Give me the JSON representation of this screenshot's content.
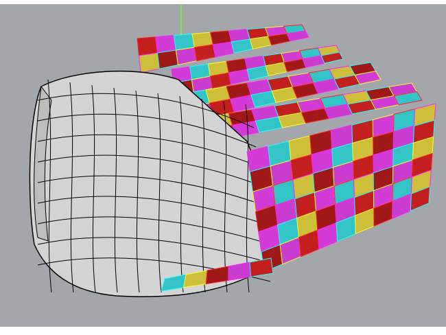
{
  "viewport": {
    "background": "#a3a6aa",
    "shell_color": "#d4d4d4",
    "edge_color": "#000000"
  },
  "panel_palette": [
    "#c41f1f",
    "#d23bd6",
    "#33c4c8",
    "#cdbf3a",
    "#a01818",
    "#c93ccf"
  ],
  "panel_edge_colors": [
    "#ff2020",
    "#ff20ff",
    "#20ffff",
    "#ffff20"
  ],
  "label_color": "#a0ff20",
  "axis_color": "#7fff20"
}
